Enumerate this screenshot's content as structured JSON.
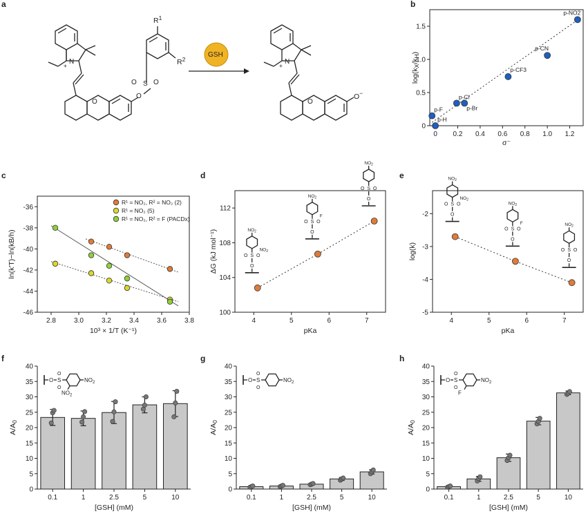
{
  "panels": {
    "a": "a",
    "b": "b",
    "c": "c",
    "d": "d",
    "e": "e",
    "f": "f",
    "g": "g",
    "h": "h"
  },
  "scheme": {
    "reagent": "GSH",
    "r1": "R",
    "r1_sup": "1",
    "r2": "R",
    "r2_sup": "2",
    "o_minus": "O",
    "minus": "−",
    "n_plus": "+",
    "plus": "+",
    "n": "N",
    "s": "S",
    "o": "O",
    "reagent_color": "#f0b323"
  },
  "chart_data": [
    {
      "id": "b",
      "type": "scatter",
      "xlabel": "σ⁻",
      "ylabel": "log(kX/kH)",
      "ylabel_main": "log(k",
      "ylabel_sub1": "X",
      "ylabel_mid": "/k",
      "ylabel_sub2": "H",
      "ylabel_end": ")",
      "xlim": [
        -0.05,
        1.32
      ],
      "ylim": [
        0,
        1.75
      ],
      "xticks": [
        "0",
        "0.2",
        "0.4",
        "0.6",
        "0.8",
        "1.0",
        "1.2"
      ],
      "yticks": [
        "0",
        "0.5",
        "1.0",
        "1.5"
      ],
      "color": "#1f5fbf",
      "points": [
        {
          "x": 0.0,
          "y": 0.0,
          "label": "p-H"
        },
        {
          "x": -0.03,
          "y": 0.15,
          "label": "p-F"
        },
        {
          "x": 0.19,
          "y": 0.34,
          "label": "p-Cl"
        },
        {
          "x": 0.26,
          "y": 0.34,
          "label": "p-Br"
        },
        {
          "x": 0.65,
          "y": 0.74,
          "label": "p-CF3"
        },
        {
          "x": 1.0,
          "y": 1.06,
          "label": "p-CN"
        },
        {
          "x": 1.27,
          "y": 1.6,
          "label": "p-NO2"
        }
      ],
      "fit": [
        [
          -0.03,
          0.05
        ],
        [
          1.3,
          1.63
        ]
      ]
    },
    {
      "id": "c",
      "type": "scatter",
      "xlabel": "10³ × 1/T (K⁻¹)",
      "ylabel": "ln(k'T)−ln(kB/h)",
      "xlim": [
        2.7,
        3.8
      ],
      "ylim": [
        -46,
        -35
      ],
      "xticks": [
        "2.8",
        "3.0",
        "3.2",
        "3.4",
        "3.6",
        "3.8"
      ],
      "yticks": [
        "-36",
        "-38",
        "-40",
        "-42",
        "-44",
        "-46"
      ],
      "legend": [
        "R¹ = NO₂, R² = NO₂ (2)",
        "R¹ = NO₂ (5)",
        "R¹ = NO₂, R² = F (PACDx)"
      ],
      "series": [
        {
          "name": "R¹ = NO₂, R² = NO₂ (2)",
          "color": "#e07b39",
          "x": [
            3.09,
            3.22,
            3.35,
            3.66
          ],
          "y": [
            -39.3,
            -39.8,
            -40.6,
            -41.9
          ]
        },
        {
          "name": "R¹ = NO₂ (5)",
          "color": "#d9d92a",
          "x": [
            2.83,
            3.09,
            3.22,
            3.35,
            3.66
          ],
          "y": [
            -41.4,
            -42.3,
            -43.0,
            -43.7,
            -44.8
          ]
        },
        {
          "name": "R¹ = NO₂, R² = F (PACDx)",
          "color": "#8fd13a",
          "x": [
            2.83,
            3.09,
            3.22,
            3.35,
            3.66
          ],
          "y": [
            -38.0,
            -40.6,
            -41.6,
            -42.8,
            -45.0
          ]
        }
      ],
      "fits": [
        [
          [
            3.05,
            -39.05
          ],
          [
            3.72,
            -42.2
          ]
        ],
        [
          [
            2.8,
            -41.2
          ],
          [
            3.72,
            -45.0
          ]
        ],
        [
          [
            2.8,
            -37.8
          ],
          [
            3.72,
            -45.4
          ]
        ]
      ]
    },
    {
      "id": "d",
      "type": "scatter",
      "xlabel": "pKa",
      "ylabel": "ΔG (kJ mol⁻¹)",
      "xlim": [
        3.5,
        7.5
      ],
      "ylim": [
        100,
        114
      ],
      "xticks": [
        "4",
        "5",
        "6",
        "7"
      ],
      "yticks": [
        "100",
        "104",
        "108",
        "112"
      ],
      "color": "#e07b39",
      "x": [
        4.1,
        5.7,
        7.2
      ],
      "y": [
        102.8,
        106.7,
        110.5
      ]
    },
    {
      "id": "e",
      "type": "scatter",
      "xlabel": "pKa",
      "ylabel": "log(k)",
      "xlim": [
        3.5,
        7.5
      ],
      "ylim": [
        -5,
        -1.3
      ],
      "xticks": [
        "4",
        "5",
        "6",
        "7"
      ],
      "yticks": [
        "-2",
        "-3",
        "-4",
        "-5"
      ],
      "color": "#e07b39",
      "x": [
        4.1,
        5.7,
        7.2
      ],
      "y": [
        -2.7,
        -3.45,
        -4.1
      ]
    },
    {
      "id": "f",
      "type": "bar",
      "xlabel": "[GSH] (mM)",
      "ylabel": "A/A0",
      "categories": [
        "0.1",
        "1",
        "2.5",
        "5",
        "10"
      ],
      "ylim": [
        0,
        40
      ],
      "yticks": [
        "0",
        "5",
        "10",
        "15",
        "20",
        "25",
        "30",
        "35",
        "40"
      ],
      "values": [
        23.3,
        23.0,
        24.9,
        27.4,
        27.8
      ],
      "errors": [
        2.6,
        2.4,
        3.6,
        2.6,
        4.2
      ],
      "points": [
        [
          21.5,
          24.8,
          25.6
        ],
        [
          21.8,
          23.5,
          25.2
        ],
        [
          22.0,
          25.1,
          28.4
        ],
        [
          26.0,
          27.3,
          30.0
        ],
        [
          23.5,
          28.0,
          31.8
        ]
      ],
      "substituents": {
        "para": "NO2",
        "ortho": "NO2"
      }
    },
    {
      "id": "g",
      "type": "bar",
      "xlabel": "[GSH] (mM)",
      "ylabel": "A/A0",
      "categories": [
        "0.1",
        "1",
        "2.5",
        "5",
        "10"
      ],
      "ylim": [
        0,
        40
      ],
      "yticks": [
        "0",
        "5",
        "10",
        "15",
        "20",
        "25",
        "30",
        "35",
        "40"
      ],
      "values": [
        0.8,
        1.0,
        1.6,
        3.3,
        5.6
      ],
      "errors": [
        0.3,
        0.3,
        0.3,
        0.5,
        0.7
      ],
      "points": [
        [
          0.6,
          0.8,
          1.0
        ],
        [
          0.8,
          1.0,
          1.2
        ],
        [
          1.4,
          1.6,
          1.8
        ],
        [
          2.9,
          3.3,
          3.6
        ],
        [
          5.0,
          5.6,
          6.2
        ]
      ],
      "substituents": {
        "para": "NO2"
      }
    },
    {
      "id": "h",
      "type": "bar",
      "xlabel": "[GSH] (mM)",
      "ylabel": "A/A0",
      "categories": [
        "0.1",
        "1",
        "2.5",
        "5",
        "10"
      ],
      "ylim": [
        0,
        40
      ],
      "yticks": [
        "0",
        "5",
        "10",
        "15",
        "20",
        "25",
        "30",
        "35",
        "40"
      ],
      "values": [
        0.8,
        3.3,
        10.2,
        22.1,
        31.3
      ],
      "errors": [
        0.3,
        0.8,
        1.2,
        1.2,
        0.6
      ],
      "points": [
        [
          0.6,
          0.8,
          1.0
        ],
        [
          2.6,
          3.4,
          4.0
        ],
        [
          9.3,
          10.2,
          11.0
        ],
        [
          21.2,
          22.0,
          23.0
        ],
        [
          30.8,
          31.2,
          31.7
        ]
      ],
      "substituents": {
        "para": "NO2",
        "ortho": "F"
      }
    }
  ],
  "structures": {
    "no2": "NO",
    "no2_sub": "2",
    "f": "F",
    "s": "S",
    "o": "O"
  }
}
